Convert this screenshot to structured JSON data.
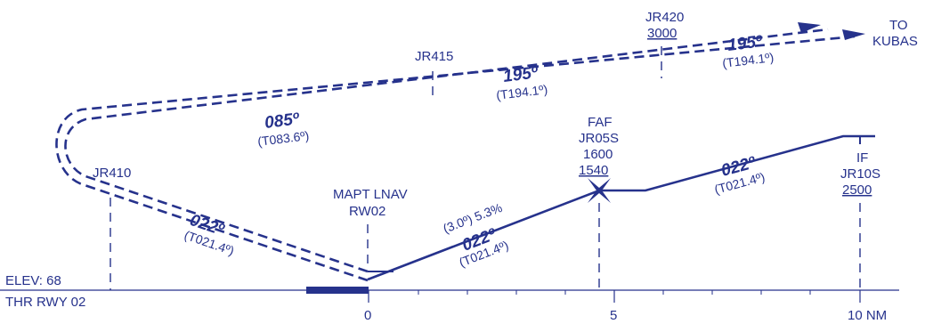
{
  "colors": {
    "ink": "#26328c",
    "background": "#ffffff"
  },
  "elevation": {
    "elev_label": "ELEV: 68",
    "threshold_label": "THR RWY 02"
  },
  "axis": {
    "tick_0": "0",
    "tick_5": "5",
    "tick_10": "10 NM"
  },
  "fixes": {
    "jr410": {
      "name": "JR410"
    },
    "mapt": {
      "line1": "MAPT LNAV",
      "line2": "RW02"
    },
    "faf": {
      "line1": "FAF",
      "line2": "JR05S",
      "line3": "1600",
      "line4": "1540"
    },
    "if_fix": {
      "line1": "IF",
      "line2": "JR10S",
      "line3": "2500"
    },
    "jr415": {
      "name": "JR415"
    },
    "jr420": {
      "name": "JR420",
      "altitude": "3000"
    },
    "kubas": {
      "line1": "TO",
      "line2": "KUBAS"
    }
  },
  "courses": {
    "inbound_final": {
      "heading": "022º",
      "true_course": "(T021.4º)",
      "glide": "(3.0º) 5.3%"
    },
    "intermediate": {
      "heading": "022º",
      "true_course": "(T021.4º)"
    },
    "missed_1": {
      "heading": "022º",
      "true_course": "(T021.4º)"
    },
    "missed_2": {
      "heading": "085º",
      "true_course": "(T083.6º)"
    },
    "missed_3": {
      "heading": "195º",
      "true_course": "(T194.1º)"
    },
    "missed_4": {
      "heading": "195º",
      "true_course": "(T194.1º)"
    }
  }
}
